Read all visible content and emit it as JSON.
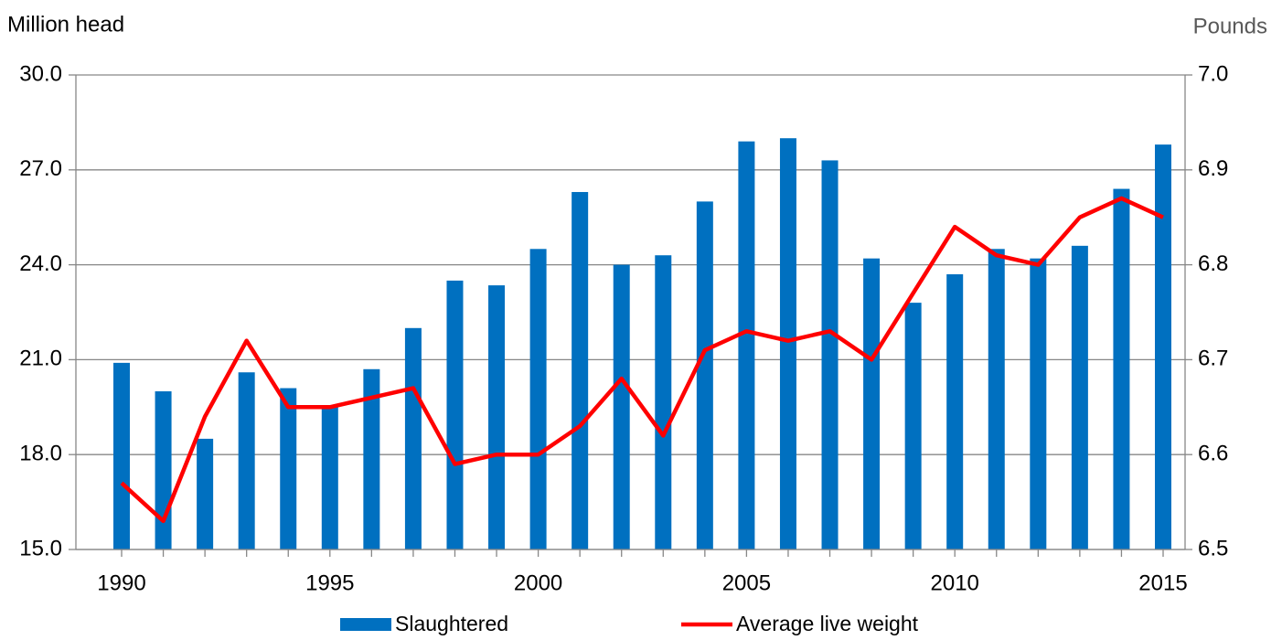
{
  "chart_data": {
    "type": "bar",
    "y_axis_label": "Million head",
    "y2_axis_label": "Pounds",
    "categories": [
      "1990",
      null,
      null,
      null,
      null,
      "1995",
      null,
      null,
      null,
      null,
      "2000",
      null,
      null,
      null,
      null,
      "2005",
      null,
      null,
      null,
      null,
      "2010",
      null,
      null,
      null,
      null,
      "2015"
    ],
    "series": [
      {
        "name": "Slaughtered",
        "type": "bar",
        "color": "#0070c0",
        "values": [
          20.9,
          20.0,
          18.5,
          20.6,
          20.1,
          19.5,
          20.7,
          22.0,
          23.5,
          23.35,
          24.5,
          26.3,
          24.0,
          24.3,
          26.0,
          27.9,
          28.0,
          27.3,
          24.2,
          22.8,
          23.7,
          24.5,
          24.2,
          24.6,
          26.4,
          27.8
        ]
      },
      {
        "name": "Average live weight",
        "type": "line",
        "color": "#ff0000",
        "axis": "y2",
        "values": [
          6.57,
          6.53,
          6.64,
          6.72,
          6.65,
          6.65,
          6.66,
          6.67,
          6.59,
          6.6,
          6.6,
          6.63,
          6.68,
          6.62,
          6.71,
          6.73,
          6.72,
          6.73,
          6.7,
          6.77,
          6.84,
          6.81,
          6.8,
          6.85,
          6.87,
          6.85
        ]
      }
    ],
    "ylim": [
      15,
      30
    ],
    "yticks": [
      {
        "value": 15,
        "label": "15.0"
      },
      {
        "value": 18,
        "label": "18.0"
      },
      {
        "value": 21,
        "label": "21.0"
      },
      {
        "value": 24,
        "label": "24.0"
      },
      {
        "value": 27,
        "label": "27.0"
      },
      {
        "value": 30,
        "label": "30.0"
      }
    ],
    "y2lim": [
      6.5,
      7.0
    ],
    "y2ticks": [
      6.5,
      6.6,
      6.7,
      6.8,
      6.9,
      {
        "value": 7.0,
        "label": "7.0"
      }
    ],
    "grid": true,
    "legend": "bottom"
  }
}
